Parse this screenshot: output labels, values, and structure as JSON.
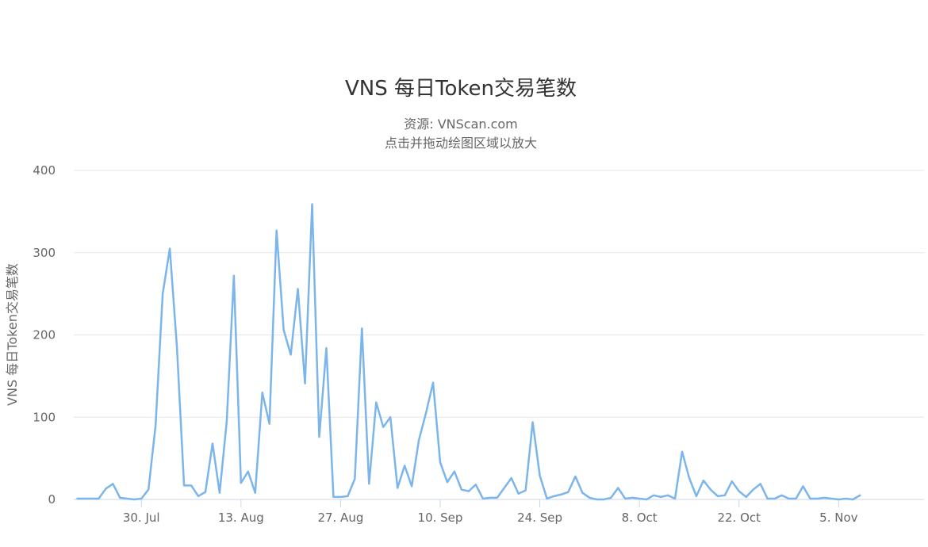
{
  "chart_data": {
    "type": "line",
    "title": "VNS 每日Token交易笔数",
    "subtitle_lines": [
      "资源: VNScan.com",
      "点击并拖动绘图区域以放大"
    ],
    "xlabel": "",
    "ylabel": "VNS 每日Token交易笔数",
    "ylim": [
      0,
      400
    ],
    "yticks": [
      "0",
      "100",
      "200",
      "300",
      "400"
    ],
    "ytick_values": [
      0,
      100,
      200,
      300,
      400
    ],
    "xtick_labels": [
      "30. Jul",
      "13. Aug",
      "27. Aug",
      "10. Sep",
      "24. Sep",
      "8. Oct",
      "22. Oct",
      "5. Nov"
    ],
    "xtick_positions": [
      9,
      23,
      37,
      51,
      65,
      79,
      93,
      107
    ],
    "xlim": [
      -0.5,
      119
    ],
    "grid": true,
    "legend": "none",
    "color": "#7cb5ec",
    "series": [
      {
        "values": [
          1,
          1,
          1,
          1,
          13,
          19,
          2,
          1,
          0,
          1,
          12,
          90,
          250,
          305,
          185,
          17,
          17,
          4,
          9,
          68,
          8,
          95,
          272,
          20,
          34,
          8,
          130,
          92,
          327,
          206,
          176,
          256,
          141,
          359,
          76,
          184,
          3,
          3,
          4,
          25,
          208,
          19,
          118,
          88,
          100,
          14,
          41,
          16,
          72,
          105,
          142,
          45,
          21,
          34,
          12,
          10,
          18,
          1,
          2,
          2,
          14,
          26,
          7,
          11,
          94,
          29,
          1,
          4,
          6,
          9,
          28,
          8,
          2,
          0,
          0,
          2,
          14,
          1,
          2,
          1,
          0,
          5,
          3,
          5,
          1,
          58,
          26,
          4,
          23,
          12,
          4,
          5,
          22,
          10,
          3,
          12,
          19,
          1,
          1,
          5,
          1,
          1,
          16,
          1,
          1,
          2,
          1,
          0,
          1,
          0,
          5
        ]
      }
    ]
  }
}
